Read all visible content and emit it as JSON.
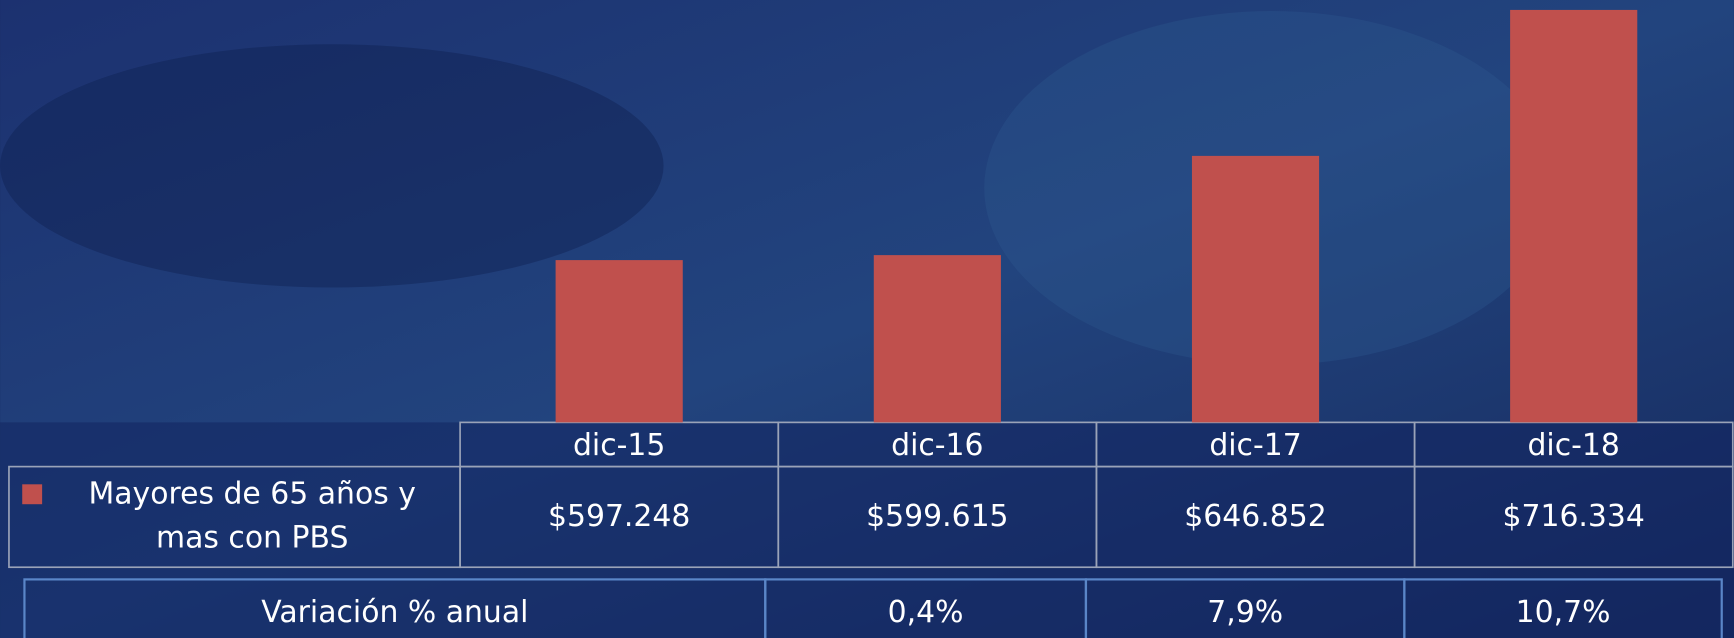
{
  "chart_data": {
    "type": "bar",
    "categories": [
      "dic-15",
      "dic-16",
      "dic-17",
      "dic-18"
    ],
    "series": [
      {
        "name": "Mayores de 65 años y mas con PBS",
        "color": "#c0504d",
        "values": [
          597248,
          599615,
          646852,
          716334
        ],
        "value_labels": [
          "$597.248",
          "$599.615",
          "$646.852",
          "$716.334"
        ]
      }
    ],
    "ylim": [
      520000,
      720000
    ],
    "variation": {
      "label": "Variación % anual",
      "cells": [
        "0,4%",
        "7,9%",
        "10,7%"
      ]
    }
  }
}
